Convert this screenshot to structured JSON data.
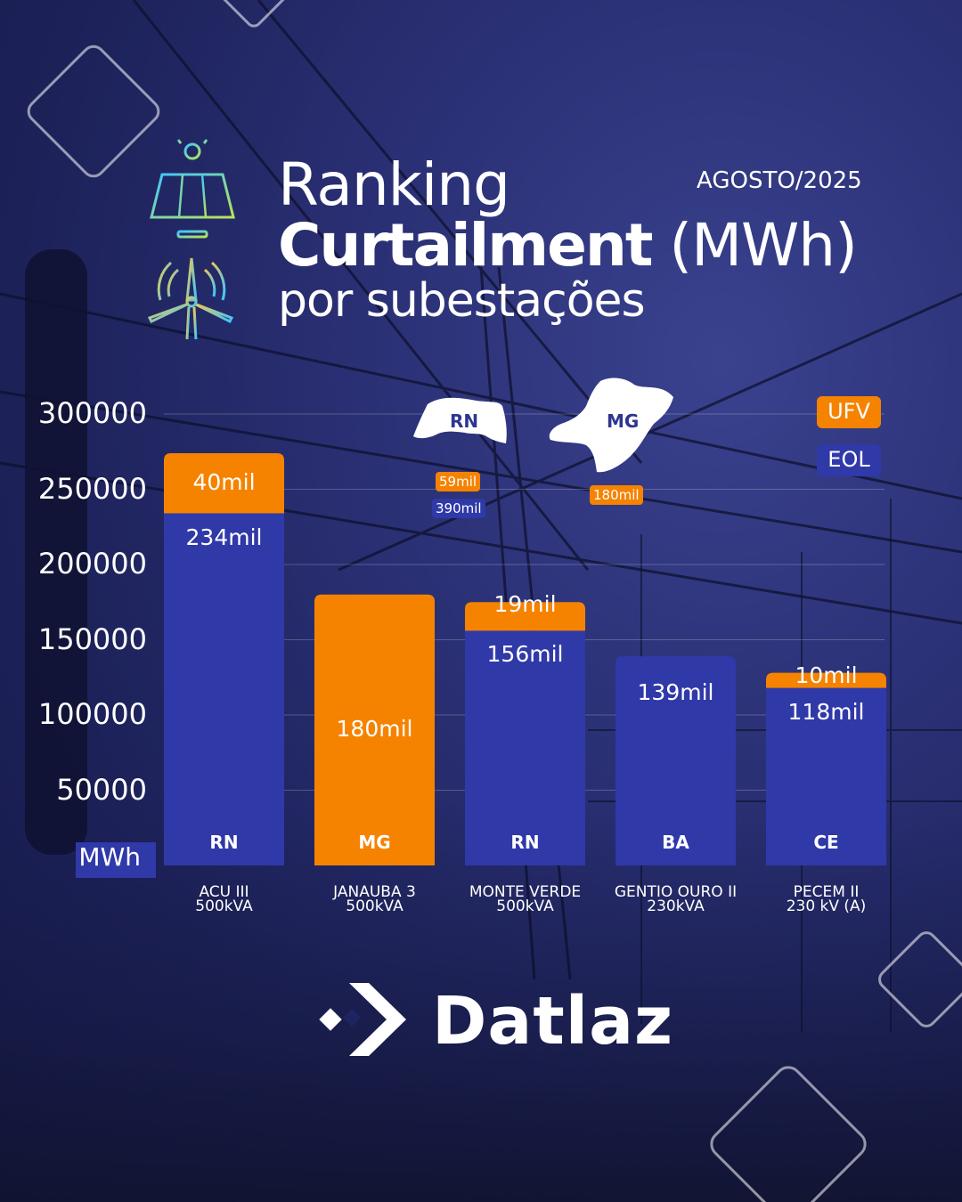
{
  "header": {
    "title_line1": "Ranking",
    "title_bold": "Curtailment",
    "title_unit": " (MWh)",
    "title_line3": "por subestações",
    "period": "AGOSTO/2025"
  },
  "colors": {
    "ufv": "#f58300",
    "eol": "#3039a8",
    "background": "#1e2460"
  },
  "icons": [
    "solar-panel-icon",
    "wind-turbine-icon",
    "datlaz-logo-icon"
  ],
  "chart_data": {
    "type": "bar",
    "stacked": true,
    "yunit_label": "MWh",
    "ylim": [
      0,
      300000
    ],
    "yticks": [
      50000,
      100000,
      150000,
      200000,
      250000,
      300000
    ],
    "ytick_labels": [
      "50000",
      "100000",
      "150000",
      "200000",
      "250000",
      "300000"
    ],
    "grid": true,
    "legend": {
      "placement": "top-right",
      "items": [
        {
          "label": "UFV",
          "color": "#f58300"
        },
        {
          "label": "EOL",
          "color": "#3039a8"
        }
      ]
    },
    "categories": [
      {
        "name": "ACU III",
        "rating": "500kVA",
        "state": "RN"
      },
      {
        "name": "JANAUBA 3",
        "rating": "500kVA",
        "state": "MG"
      },
      {
        "name": "MONTE VERDE",
        "rating": "500kVA",
        "state": "RN"
      },
      {
        "name": "GENTIO OURO II",
        "rating": "230kVA",
        "state": "BA"
      },
      {
        "name": "PECEM II",
        "rating": "230 kV (A)",
        "state": "CE"
      }
    ],
    "series": [
      {
        "name": "EOL",
        "values": [
          234000,
          0,
          156000,
          139000,
          118000
        ],
        "labels": [
          "234mil",
          "",
          "156mil",
          "139mil",
          "118mil"
        ]
      },
      {
        "name": "UFV",
        "values": [
          40000,
          180000,
          19000,
          0,
          10000
        ],
        "labels": [
          "40mil",
          "180mil",
          "19mil",
          "",
          "10mil"
        ]
      }
    ],
    "state_totals": [
      {
        "state": "RN",
        "ufv": "59mil",
        "eol": "390mil"
      },
      {
        "state": "MG",
        "ufv": "180mil"
      }
    ]
  },
  "brand": {
    "name": "Datlaz"
  }
}
